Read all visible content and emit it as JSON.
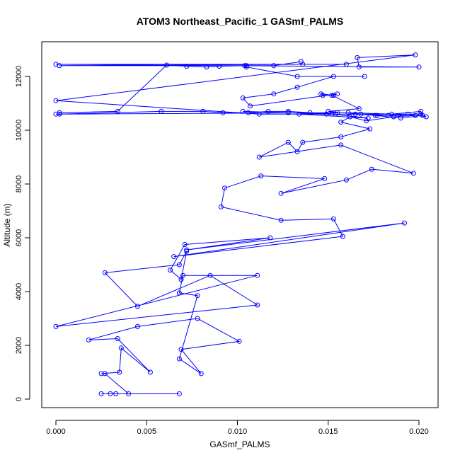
{
  "chart_data": {
    "type": "line",
    "title": "ATOM3 Northeast_Pacific_1 GASmf_PALMS",
    "xlabel": "GASmf_PALMS",
    "ylabel": "Altitude (m)",
    "xlim": [
      0.0,
      0.02
    ],
    "ylim": [
      0,
      12800
    ],
    "x_ticks": [
      0.0,
      0.005,
      0.01,
      0.015,
      0.02
    ],
    "x_tick_labels": [
      "0.000",
      "0.005",
      "0.010",
      "0.015",
      "0.020"
    ],
    "y_ticks": [
      0,
      2000,
      4000,
      6000,
      8000,
      10000,
      12000
    ],
    "y_tick_labels": [
      "0",
      "2000",
      "4000",
      "6000",
      "8000",
      "10000",
      "12000"
    ],
    "grid": false,
    "marker": "open-circle",
    "color": "#0000ff",
    "series": [
      {
        "x": [
          0.0068,
          0.0025,
          0.003,
          0.0033,
          0.004,
          0.0027,
          0.0025,
          0.0035,
          0.0036,
          0.0052,
          0.0034,
          0.0018,
          0.0045,
          0.0078,
          0.0101,
          0.0069,
          0.008,
          0.0068,
          0.0078,
          0.0068,
          0.007,
          0.0111,
          0.0,
          0.0111,
          0.0085,
          0.0045,
          0.0027,
          0.0068,
          0.0072,
          0.0069,
          0.0063,
          0.0071,
          0.0118,
          0.0072,
          0.0192,
          0.0065,
          0.0158,
          0.0153,
          0.0124,
          0.0091,
          0.0093,
          0.0113,
          0.0148,
          0.0124,
          0.016,
          0.0174,
          0.0197,
          0.0157,
          0.0112,
          0.0128,
          0.0133,
          0.0136,
          0.0157,
          0.0173,
          0.0157,
          0.0162,
          0.0171,
          0.0186,
          0.0198,
          0.0177,
          0.0165,
          0.0161,
          0.0185,
          0.0201,
          0.0202,
          0.019,
          0.0176,
          0.015,
          0.0167,
          0.0152,
          0.0147,
          0.0146,
          0.0153,
          0.0155,
          0.0107,
          0.0103,
          0.012,
          0.0133,
          0.0153,
          0.017,
          0.0133,
          0.0105,
          0.0104,
          0.0002,
          0.0136,
          0.016,
          0.0,
          0.02,
          0.0167,
          0.0166,
          0.0198,
          0.0,
          0.0112,
          0.0152,
          0.0172,
          0.0134,
          0.0155,
          0.0
        ],
        "y": [
          200,
          200,
          200,
          200,
          200,
          950,
          950,
          1000,
          1900,
          1000,
          2250,
          2200,
          2700,
          3000,
          2150,
          1850,
          950,
          1500,
          3850,
          3950,
          4600,
          4600,
          2700,
          3500,
          4600,
          3450,
          4700,
          5000,
          5500,
          4450,
          4800,
          5750,
          6000,
          5550,
          6550,
          5300,
          6050,
          6700,
          6650,
          7150,
          7850,
          8300,
          8200,
          7650,
          8150,
          8550,
          8400,
          9450,
          9000,
          9550,
          9200,
          9550,
          9750,
          10050,
          10300,
          10500,
          10350,
          10500,
          10550,
          10550,
          10600,
          10650,
          10600,
          10700,
          10550,
          10450,
          10550,
          10700,
          10800,
          11300,
          11300,
          11350,
          11300,
          11350,
          10900,
          11200,
          11350,
          11600,
          12000,
          12000,
          12000,
          12350,
          12400,
          12400,
          12450,
          12450,
          12450,
          12350,
          12350,
          12700,
          12800,
          11100,
          10600,
          10600,
          10450,
          10600,
          10650,
          10600
        ]
      },
      {
        "x": [
          0.0135,
          0.012,
          0.0105,
          0.009,
          0.0083,
          0.0072,
          0.0061,
          0.0034,
          0.0002,
          0.0002,
          0.0058,
          0.0081,
          0.0092,
          0.0106,
          0.0117,
          0.0128,
          0.014,
          0.0154,
          0.0168,
          0.0183,
          0.0194,
          0.0204,
          0.0201,
          0.0149,
          0.0128,
          0.0103
        ],
        "y": [
          12550,
          12400,
          12400,
          12380,
          12350,
          12380,
          12420,
          10700,
          10650,
          10600,
          10700,
          10700,
          10650,
          10650,
          10700,
          10700,
          10650,
          10600,
          10600,
          10550,
          10600,
          10500,
          10600,
          10600,
          10650,
          10700
        ]
      }
    ]
  }
}
